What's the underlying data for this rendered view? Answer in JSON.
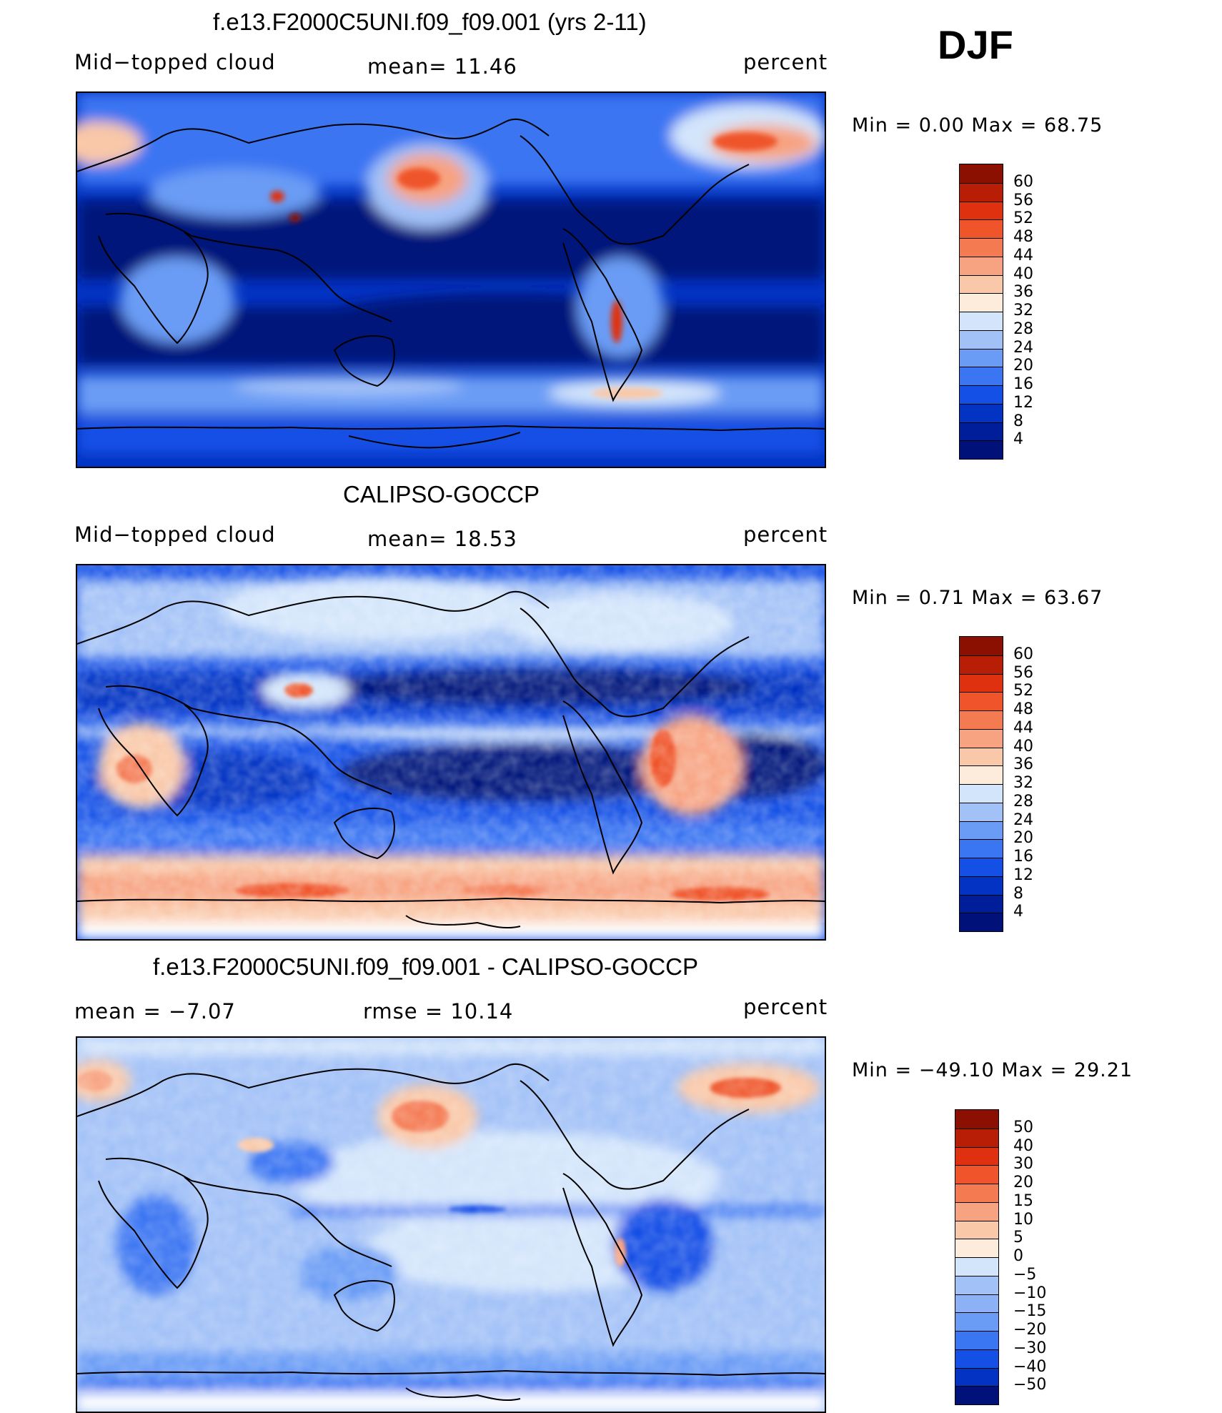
{
  "season": "DJF",
  "colors": {
    "ocean_low": "#00127a",
    "c04": "#001d9a",
    "c08": "#0233c2",
    "c12": "#1450e6",
    "c16": "#3a75f2",
    "c20": "#6b9cf5",
    "c24": "#a2c1f7",
    "c28": "#d3e5fb",
    "c32": "#fdebdb",
    "c36": "#f9c8a8",
    "c40": "#f7a381",
    "c44": "#f47a52",
    "c48": "#ef542a",
    "c52": "#df3110",
    "c56": "#b81d05",
    "c60": "#8c1002"
  },
  "panels": [
    {
      "title": "f.e13.F2000C5UNI.f09_f09.001 (yrs 2-11)",
      "left_label": "Mid−topped  cloud",
      "center_label": "mean=   11.46",
      "right_label": "percent",
      "minmax": "Min  =     0.00  Max  =    68.75",
      "colorbar_labels": [
        "60",
        "56",
        "52",
        "48",
        "44",
        "40",
        "36",
        "32",
        "28",
        "24",
        "20",
        "16",
        "12",
        "8",
        "4"
      ],
      "colorbar_colors": [
        "#8c1002",
        "#b81d05",
        "#df3110",
        "#ef542a",
        "#f47a52",
        "#f7a381",
        "#f9c8a8",
        "#fdebdb",
        "#d3e5fb",
        "#a2c1f7",
        "#6b9cf5",
        "#3a75f2",
        "#1450e6",
        "#0233c2",
        "#001d9a",
        "#00127a"
      ]
    },
    {
      "title": "CALIPSO-GOCCP",
      "left_label": "Mid−topped  cloud",
      "center_label": "mean=   18.53",
      "right_label": "percent",
      "minmax": "Min  =     0.71  Max  =    63.67",
      "colorbar_labels": [
        "60",
        "56",
        "52",
        "48",
        "44",
        "40",
        "36",
        "32",
        "28",
        "24",
        "20",
        "16",
        "12",
        "8",
        "4"
      ],
      "colorbar_colors": [
        "#8c1002",
        "#b81d05",
        "#df3110",
        "#ef542a",
        "#f47a52",
        "#f7a381",
        "#f9c8a8",
        "#fdebdb",
        "#d3e5fb",
        "#a2c1f7",
        "#6b9cf5",
        "#3a75f2",
        "#1450e6",
        "#0233c2",
        "#001d9a",
        "#00127a"
      ]
    },
    {
      "title": "f.e13.F2000C5UNI.f09_f09.001 - CALIPSO-GOCCP",
      "left_label": "mean  =    −7.07",
      "center_label": "rmse  =    10.14",
      "right_label": "percent",
      "minmax": "Min  =  −49.10  Max  =    29.21",
      "colorbar_labels": [
        "50",
        "40",
        "30",
        "20",
        "15",
        "10",
        "5",
        "0",
        "−5",
        "−10",
        "−15",
        "−20",
        "−30",
        "−40",
        "−50"
      ],
      "colorbar_colors": [
        "#8c1002",
        "#b81d05",
        "#df3110",
        "#ef542a",
        "#f47a52",
        "#f7a381",
        "#f9c8a8",
        "#fdebdb",
        "#d3e5fb",
        "#a2c1f7",
        "#8cb1f5",
        "#6b9cf5",
        "#3a75f2",
        "#1450e6",
        "#0233c2",
        "#00127a"
      ]
    }
  ]
}
